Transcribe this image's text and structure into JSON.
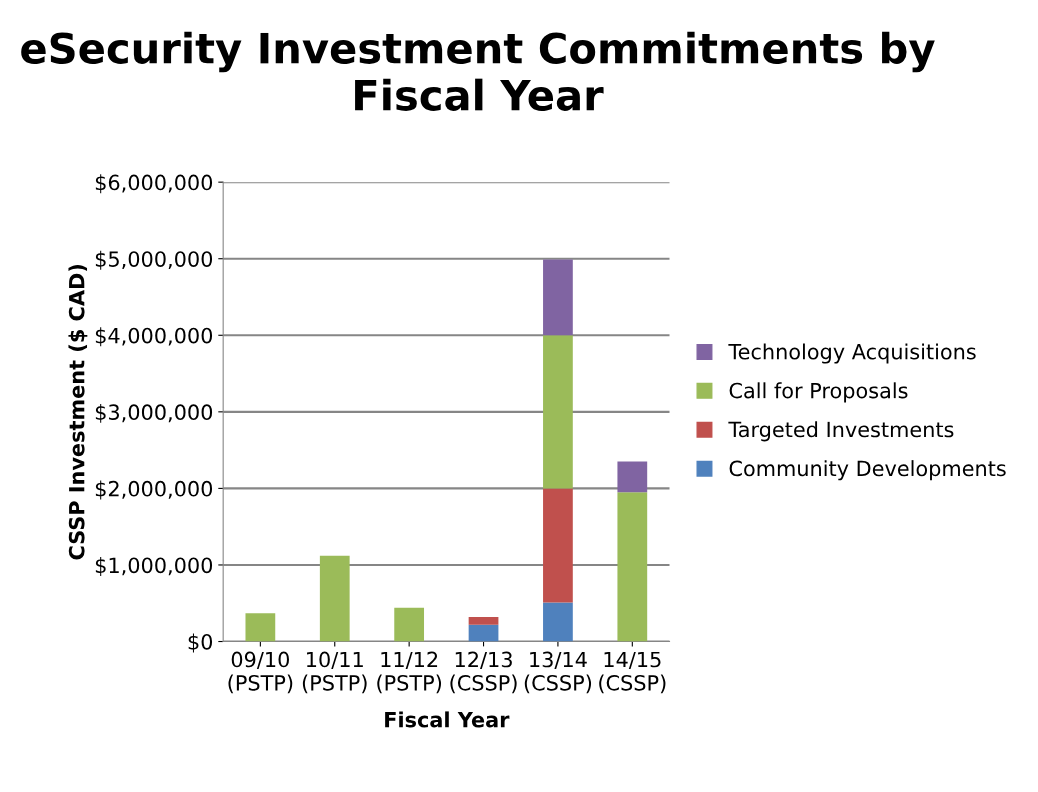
{
  "chart_data": {
    "type": "bar",
    "stacked": true,
    "title": "eSecurity Investment Commitments by Fiscal Year",
    "xlabel": "Fiscal Year",
    "ylabel": "CSSP Investment ($ CAD)",
    "categories": [
      "09/10\n(PSTP)",
      "10/11\n(PSTP)",
      "11/12\n(PSTP)",
      "12/13\n(CSSP)",
      "13/14\n(CSSP)",
      "14/15\n(CSSP)"
    ],
    "series": [
      {
        "name": "Community Developments",
        "color": "#4f81bd",
        "values": [
          0,
          0,
          0,
          220000,
          510000,
          0
        ]
      },
      {
        "name": "Targeted Investments",
        "color": "#c0504d",
        "values": [
          0,
          0,
          0,
          100000,
          1490000,
          0
        ]
      },
      {
        "name": "Call for Proposals",
        "color": "#9bbb59",
        "values": [
          370000,
          1120000,
          440000,
          0,
          2000000,
          1950000
        ]
      },
      {
        "name": "Technology Acquisitions",
        "color": "#8064a2",
        "values": [
          0,
          0,
          0,
          0,
          990000,
          400000
        ]
      }
    ],
    "ylim": [
      0,
      6000000
    ],
    "yticks": [
      {
        "value": 0,
        "label": "$0"
      },
      {
        "value": 1000000,
        "label": "$1,000,000"
      },
      {
        "value": 2000000,
        "label": "$2,000,000"
      },
      {
        "value": 3000000,
        "label": "$3,000,000"
      },
      {
        "value": 4000000,
        "label": "$4,000,000"
      },
      {
        "value": 5000000,
        "label": "$5,000,000"
      },
      {
        "value": 6000000,
        "label": "$6,000,000"
      }
    ],
    "grid": "y",
    "legend": "right"
  }
}
